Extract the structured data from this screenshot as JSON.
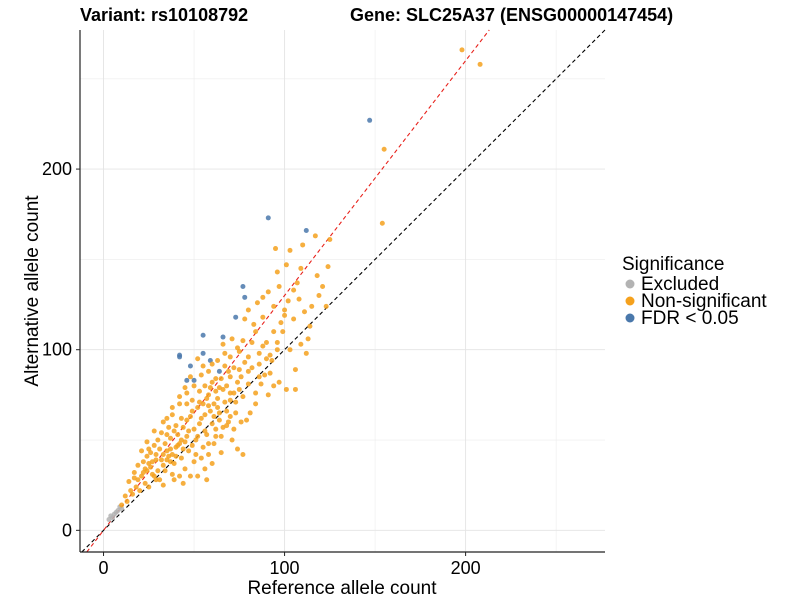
{
  "chart_data": {
    "type": "scatter",
    "title_left": "Variant: rs10108792",
    "title_right": "Gene: SLC25A37 (ENSG00000147454)",
    "xlabel": "Reference allele count",
    "ylabel": "Alternative allele count",
    "xlim": [
      -13,
      277
    ],
    "ylim": [
      -12,
      277
    ],
    "xticks": [
      0,
      100,
      200
    ],
    "yticks": [
      0,
      100,
      200
    ],
    "grid": true,
    "legend": {
      "title": "Significance",
      "placement": "right",
      "entries": [
        {
          "label": "Excluded",
          "color": "#b3b3b3"
        },
        {
          "label": "Non-significant",
          "color": "#f5a11d"
        },
        {
          "label": "FDR < 0.05",
          "color": "#4a78ab"
        }
      ]
    },
    "reference_lines": [
      {
        "name": "identity",
        "slope": 1.0,
        "intercept": 0,
        "color": "#000000",
        "style": "dashed"
      },
      {
        "name": "fitted",
        "slope": 1.3,
        "intercept": 0,
        "color": "#e8211b",
        "style": "dashed"
      }
    ],
    "series": [
      {
        "name": "Excluded",
        "color": "#b3b3b3",
        "points": [
          [
            4,
            8
          ],
          [
            6,
            9
          ],
          [
            8,
            11
          ],
          [
            9,
            13
          ],
          [
            7,
            10
          ],
          [
            5,
            7
          ],
          [
            10,
            12
          ],
          [
            3,
            6
          ]
        ]
      },
      {
        "name": "FDR < 0.05",
        "color": "#4a78ab",
        "points": [
          [
            147,
            227
          ],
          [
            91,
            173
          ],
          [
            112,
            166
          ],
          [
            77,
            135
          ],
          [
            78,
            129
          ],
          [
            73,
            118
          ],
          [
            55,
            108
          ],
          [
            66,
            107
          ],
          [
            42,
            97
          ],
          [
            42,
            96
          ],
          [
            55,
            98
          ],
          [
            59,
            94
          ],
          [
            48,
            91
          ],
          [
            50,
            83
          ],
          [
            46,
            83
          ],
          [
            64,
            88
          ]
        ]
      },
      {
        "name": "Non-significant",
        "color": "#f5a11d",
        "points": [
          [
            198,
            266
          ],
          [
            208,
            258
          ],
          [
            155,
            211
          ],
          [
            154,
            170
          ],
          [
            125,
            161
          ],
          [
            117,
            163
          ],
          [
            110,
            158
          ],
          [
            118,
            141
          ],
          [
            124,
            146
          ],
          [
            121,
            135
          ],
          [
            123,
            124
          ],
          [
            109,
            145
          ],
          [
            103,
            155
          ],
          [
            101,
            147
          ],
          [
            96,
            143
          ],
          [
            95,
            156
          ],
          [
            88,
            129
          ],
          [
            91,
            132
          ],
          [
            97,
            135
          ],
          [
            83,
            114
          ],
          [
            78,
            117
          ],
          [
            105,
            117
          ],
          [
            109,
            103
          ],
          [
            113,
            106
          ],
          [
            101,
            78
          ],
          [
            106,
            78
          ],
          [
            112,
            98
          ],
          [
            106,
            89
          ],
          [
            103,
            100
          ],
          [
            99,
            110
          ],
          [
            100,
            119
          ],
          [
            94,
            124
          ],
          [
            88,
            118
          ],
          [
            84,
            110
          ],
          [
            82,
            104
          ],
          [
            80,
            96
          ],
          [
            86,
            98
          ],
          [
            90,
            104
          ],
          [
            93,
            94
          ],
          [
            96,
            100
          ],
          [
            92,
            87
          ],
          [
            86,
            92
          ],
          [
            75,
            99
          ],
          [
            71,
            106
          ],
          [
            67,
            98
          ],
          [
            63,
            94
          ],
          [
            58,
            88
          ],
          [
            60,
            82
          ],
          [
            53,
            77
          ],
          [
            57,
            73
          ],
          [
            61,
            70
          ],
          [
            66,
            78
          ],
          [
            70,
            76
          ],
          [
            74,
            82
          ],
          [
            77,
            74
          ],
          [
            80,
            88
          ],
          [
            84,
            70
          ],
          [
            89,
            86
          ],
          [
            79,
            61
          ],
          [
            73,
            65
          ],
          [
            68,
            66
          ],
          [
            64,
            61
          ],
          [
            62,
            56
          ],
          [
            57,
            53
          ],
          [
            53,
            59
          ],
          [
            49,
            66
          ],
          [
            46,
            70
          ],
          [
            43,
            62
          ],
          [
            40,
            58
          ],
          [
            36,
            57
          ],
          [
            34,
            48
          ],
          [
            31,
            45
          ],
          [
            29,
            42
          ],
          [
            32,
            39
          ],
          [
            36,
            41
          ],
          [
            40,
            46
          ],
          [
            43,
            50
          ],
          [
            47,
            55
          ],
          [
            51,
            50
          ],
          [
            55,
            46
          ],
          [
            58,
            42
          ],
          [
            61,
            48
          ],
          [
            65,
            52
          ],
          [
            68,
            58
          ],
          [
            71,
            50
          ],
          [
            74,
            45
          ],
          [
            77,
            42
          ],
          [
            65,
            43
          ],
          [
            60,
            37
          ],
          [
            56,
            34
          ],
          [
            50,
            38
          ],
          [
            45,
            34
          ],
          [
            42,
            30
          ],
          [
            38,
            31
          ],
          [
            34,
            33
          ],
          [
            28,
            30
          ],
          [
            26,
            35
          ],
          [
            24,
            41
          ],
          [
            22,
            38
          ],
          [
            19,
            36
          ],
          [
            21,
            30
          ],
          [
            23,
            26
          ],
          [
            18,
            24
          ],
          [
            15,
            22
          ],
          [
            14,
            27
          ],
          [
            17,
            29
          ],
          [
            12,
            19
          ],
          [
            10,
            14
          ],
          [
            13,
            16
          ],
          [
            16,
            20
          ],
          [
            20,
            22
          ],
          [
            25,
            24
          ],
          [
            29,
            28
          ],
          [
            33,
            25
          ],
          [
            39,
            28
          ],
          [
            44,
            26
          ],
          [
            48,
            30
          ],
          [
            52,
            30
          ],
          [
            57,
            28
          ],
          [
            21,
            44
          ],
          [
            24,
            49
          ],
          [
            28,
            55
          ],
          [
            33,
            60
          ],
          [
            38,
            64
          ],
          [
            42,
            70
          ],
          [
            46,
            76
          ],
          [
            50,
            80
          ],
          [
            54,
            86
          ],
          [
            56,
            64
          ],
          [
            59,
            66
          ],
          [
            63,
            68
          ],
          [
            67,
            71
          ],
          [
            70,
            63
          ],
          [
            72,
            56
          ],
          [
            76,
            60
          ],
          [
            81,
            65
          ],
          [
            84,
            76
          ],
          [
            87,
            81
          ],
          [
            91,
            75
          ],
          [
            94,
            80
          ],
          [
            97,
            82
          ],
          [
            72,
            90
          ],
          [
            69,
            88
          ],
          [
            65,
            84
          ],
          [
            62,
            77
          ],
          [
            58,
            75
          ],
          [
            55,
            70
          ],
          [
            52,
            68
          ],
          [
            48,
            63
          ],
          [
            44,
            57
          ],
          [
            41,
            53
          ],
          [
            37,
            51
          ],
          [
            35,
            44
          ],
          [
            39,
            37
          ],
          [
            43,
            40
          ],
          [
            47,
            44
          ],
          [
            51,
            42
          ],
          [
            54,
            40
          ],
          [
            58,
            48
          ],
          [
            62,
            52
          ],
          [
            66,
            57
          ],
          [
            69,
            60
          ],
          [
            73,
            71
          ],
          [
            75,
            78
          ],
          [
            80,
            81
          ],
          [
            82,
            90
          ],
          [
            86,
            85
          ],
          [
            90,
            95
          ],
          [
            94,
            110
          ],
          [
            98,
            115
          ],
          [
            102,
            127
          ],
          [
            105,
            133
          ],
          [
            108,
            128
          ],
          [
            111,
            121
          ],
          [
            114,
            113
          ],
          [
            75,
            89
          ],
          [
            78,
            93
          ],
          [
            70,
            85
          ],
          [
            67,
            91
          ],
          [
            60,
            92
          ],
          [
            56,
            80
          ],
          [
            53,
            71
          ],
          [
            49,
            72
          ],
          [
            46,
            61
          ],
          [
            44,
            45
          ],
          [
            40,
            41
          ],
          [
            37,
            38
          ],
          [
            33,
            36
          ],
          [
            30,
            33
          ],
          [
            27,
            38
          ],
          [
            25,
            45
          ],
          [
            30,
            50
          ],
          [
            35,
            53
          ],
          [
            39,
            55
          ],
          [
            31,
            28
          ],
          [
            27,
            31
          ],
          [
            24,
            33
          ],
          [
            63,
            73
          ],
          [
            68,
            80
          ],
          [
            72,
            76
          ],
          [
            76,
            85
          ],
          [
            60,
            59
          ],
          [
            56,
            55
          ],
          [
            52,
            52
          ],
          [
            49,
            47
          ],
          [
            45,
            49
          ],
          [
            41,
            47
          ],
          [
            37,
            45
          ],
          [
            33,
            42
          ],
          [
            29,
            39
          ],
          [
            26,
            43
          ],
          [
            22,
            32
          ],
          [
            19,
            28
          ],
          [
            17,
            32
          ],
          [
            61,
            63
          ],
          [
            64,
            65
          ],
          [
            88,
            102
          ],
          [
            92,
            97
          ],
          [
            96,
            104
          ],
          [
            100,
            122
          ],
          [
            107,
            137
          ],
          [
            115,
            124
          ],
          [
            119,
            130
          ],
          [
            85,
            126
          ],
          [
            80,
            122
          ],
          [
            77,
            105
          ],
          [
            74,
            101
          ],
          [
            70,
            96
          ],
          [
            66,
            103
          ],
          [
            62,
            84
          ],
          [
            59,
            79
          ],
          [
            55,
            91
          ],
          [
            52,
            95
          ],
          [
            48,
            85
          ],
          [
            45,
            79
          ],
          [
            42,
            74
          ],
          [
            38,
            68
          ],
          [
            35,
            62
          ],
          [
            32,
            54
          ],
          [
            28,
            47
          ],
          [
            25,
            37
          ],
          [
            23,
            34
          ],
          [
            70,
            72
          ],
          [
            64,
            79
          ],
          [
            58,
            69
          ],
          [
            54,
            62
          ],
          [
            50,
            56
          ],
          [
            46,
            52
          ],
          [
            42,
            48
          ],
          [
            38,
            42
          ],
          [
            35,
            39
          ]
        ]
      }
    ]
  }
}
